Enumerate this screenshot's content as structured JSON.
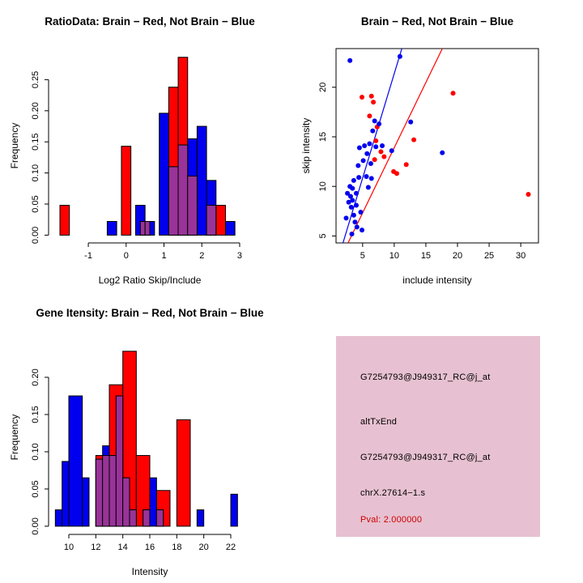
{
  "figure": {
    "background": "#FFFFFF"
  },
  "chart_data": [
    {
      "type": "hist",
      "name": "ratio-histogram",
      "title": "RatioData: Brain − Red, Not Brain − Blue",
      "xlabel": "Log2 Ratio Skip/Include",
      "ylabel": "Frequency",
      "xlim": [
        -2.05,
        3.3
      ],
      "ylim": [
        -0.0125,
        0.3
      ],
      "xticks": [
        -1,
        0,
        1,
        2,
        3
      ],
      "xticklabels": [
        "-1",
        "0",
        "1",
        "2",
        "3"
      ],
      "yticks": [
        0,
        0.05,
        0.1,
        0.15,
        0.2,
        0.25
      ],
      "yticklabels": [
        "0.00",
        "0.05",
        "0.10",
        "0.15",
        "0.20",
        "0.25"
      ],
      "overlap_color": "#993399",
      "series": [
        {
          "name": "Brain",
          "color": "#FF0000",
          "bars": [
            [
              -1.75,
              -1.5,
              0.048
            ],
            [
              -0.125,
              0.125,
              0.143
            ],
            [
              0.375,
              0.625,
              0.022
            ],
            [
              1.125,
              1.375,
              0.238
            ],
            [
              1.375,
              1.625,
              0.286
            ],
            [
              1.625,
              1.875,
              0.095
            ],
            [
              2.125,
              2.375,
              0.048
            ],
            [
              2.375,
              2.625,
              0.048
            ]
          ]
        },
        {
          "name": "Not Brain",
          "color": "#0000EE",
          "bars": [
            [
              -0.5,
              -0.25,
              0.022
            ],
            [
              0.25,
              0.5,
              0.048
            ],
            [
              0.5,
              0.75,
              0.022
            ],
            [
              0.875,
              1.125,
              0.196
            ],
            [
              1.125,
              1.375,
              0.11
            ],
            [
              1.375,
              1.625,
              0.145
            ],
            [
              1.625,
              1.875,
              0.155
            ],
            [
              1.875,
              2.125,
              0.175
            ],
            [
              2.125,
              2.375,
              0.088
            ],
            [
              2.625,
              2.875,
              0.022
            ]
          ]
        }
      ]
    },
    {
      "type": "scatter",
      "name": "intensity-scatter",
      "title": "Brain − Red, Not Brain − Blue",
      "xlabel": "include intensity",
      "ylabel": "skip intensity",
      "xlim": [
        0.8,
        32.8
      ],
      "ylim": [
        4.3,
        23.9
      ],
      "xticks": [
        5,
        10,
        15,
        20,
        25,
        30
      ],
      "xticklabels": [
        "5",
        "10",
        "15",
        "20",
        "25",
        "30"
      ],
      "yticks": [
        5,
        10,
        15,
        20
      ],
      "yticklabels": [
        "5",
        "10",
        "15",
        "20"
      ],
      "series": [
        {
          "name": "Brain",
          "color": "#FF0000",
          "points": [
            [
              4.9,
              19.0
            ],
            [
              6.4,
              19.1
            ],
            [
              6.7,
              18.5
            ],
            [
              6.1,
              17.1
            ],
            [
              7.3,
              16.0
            ],
            [
              7.1,
              14.6
            ],
            [
              7.9,
              13.5
            ],
            [
              8.4,
              13.0
            ],
            [
              9.9,
              11.5
            ],
            [
              11.9,
              12.2
            ],
            [
              13.1,
              14.7
            ],
            [
              19.3,
              19.4
            ],
            [
              31.2,
              9.2
            ],
            [
              6.9,
              12.7
            ],
            [
              10.4,
              11.3
            ]
          ]
        },
        {
          "name": "Not Brain",
          "color": "#0000EE",
          "points": [
            [
              2.6,
              9.3
            ],
            [
              2.8,
              8.4
            ],
            [
              3.0,
              10.0
            ],
            [
              3.1,
              9.0
            ],
            [
              3.2,
              7.9
            ],
            [
              3.4,
              8.6
            ],
            [
              3.4,
              9.8
            ],
            [
              3.6,
              10.6
            ],
            [
              3.6,
              7.1
            ],
            [
              3.8,
              6.4
            ],
            [
              4.0,
              8.1
            ],
            [
              4.0,
              9.3
            ],
            [
              4.1,
              5.9
            ],
            [
              4.3,
              12.1
            ],
            [
              4.4,
              10.9
            ],
            [
              4.5,
              13.9
            ],
            [
              4.7,
              7.4
            ],
            [
              4.9,
              5.6
            ],
            [
              5.1,
              12.6
            ],
            [
              5.3,
              14.1
            ],
            [
              5.6,
              11.0
            ],
            [
              5.7,
              13.3
            ],
            [
              6.1,
              14.3
            ],
            [
              6.3,
              12.3
            ],
            [
              6.6,
              15.6
            ],
            [
              6.9,
              16.6
            ],
            [
              7.1,
              14.0
            ],
            [
              7.6,
              16.3
            ],
            [
              8.1,
              14.1
            ],
            [
              3.0,
              22.7
            ],
            [
              10.9,
              23.1
            ],
            [
              12.6,
              16.5
            ],
            [
              9.6,
              13.6
            ],
            [
              17.6,
              13.4
            ],
            [
              3.3,
              5.2
            ],
            [
              2.4,
              6.8
            ],
            [
              5.9,
              9.9
            ],
            [
              6.4,
              10.8
            ]
          ]
        }
      ],
      "lines": [
        {
          "color": "#0000EE",
          "x1": 1.9,
          "y1": 4.3,
          "x2": 11.2,
          "y2": 23.9
        },
        {
          "color": "#FF0000",
          "x1": 2.7,
          "y1": 4.3,
          "x2": 17.6,
          "y2": 23.9
        }
      ]
    },
    {
      "type": "hist",
      "name": "gene-intensity-histogram",
      "title": "Gene Itensity: Brain − Red, Not Brain − Blue",
      "xlabel": "Intensity",
      "ylabel": "Frequency",
      "xlim": [
        8.5,
        23.5
      ],
      "ylim": [
        -0.011,
        0.25
      ],
      "xticks": [
        10,
        12,
        14,
        16,
        18,
        20,
        22
      ],
      "xticklabels": [
        "10",
        "12",
        "14",
        "16",
        "18",
        "20",
        "22"
      ],
      "yticks": [
        0,
        0.05,
        0.1,
        0.15,
        0.2
      ],
      "yticklabels": [
        "0.00",
        "0.05",
        "0.10",
        "0.15",
        "0.20"
      ],
      "overlap_color": "#993399",
      "series": [
        {
          "name": "Brain",
          "color": "#FF0000",
          "bars": [
            [
              12,
              13,
              0.095
            ],
            [
              13,
              14,
              0.19
            ],
            [
              14,
              15,
              0.235
            ],
            [
              15,
              16,
              0.095
            ],
            [
              16.5,
              17.5,
              0.048
            ],
            [
              18,
              19,
              0.143
            ]
          ]
        },
        {
          "name": "Not Brain",
          "color": "#0000EE",
          "bars": [
            [
              9,
              9.5,
              0.022
            ],
            [
              9.5,
              10,
              0.087
            ],
            [
              10,
              11,
              0.175
            ],
            [
              11,
              11.5,
              0.065
            ],
            [
              12,
              12.5,
              0.09
            ],
            [
              12.5,
              13,
              0.108
            ],
            [
              13,
              13.5,
              0.095
            ],
            [
              13.5,
              14,
              0.175
            ],
            [
              14,
              14.5,
              0.065
            ],
            [
              14.5,
              15,
              0.022
            ],
            [
              15.5,
              16,
              0.022
            ],
            [
              16,
              16.5,
              0.065
            ],
            [
              16.5,
              17,
              0.022
            ],
            [
              19.5,
              20,
              0.022
            ],
            [
              22,
              22.5,
              0.043
            ]
          ]
        }
      ]
    },
    {
      "type": "text-panel",
      "name": "info-panel",
      "background": "#E7C1D1",
      "lines": [
        {
          "text": "G7254793@J949317_RC@j_at",
          "color": "#000000"
        },
        {
          "text": "altTxEnd",
          "color": "#000000"
        },
        {
          "text": "G7254793@J949317_RC@j_at",
          "color": "#000000"
        },
        {
          "text": "chrX.27614−1.s",
          "color": "#000000"
        },
        {
          "text": "Pval: 2.000000",
          "color": "#CC0000"
        }
      ]
    }
  ]
}
